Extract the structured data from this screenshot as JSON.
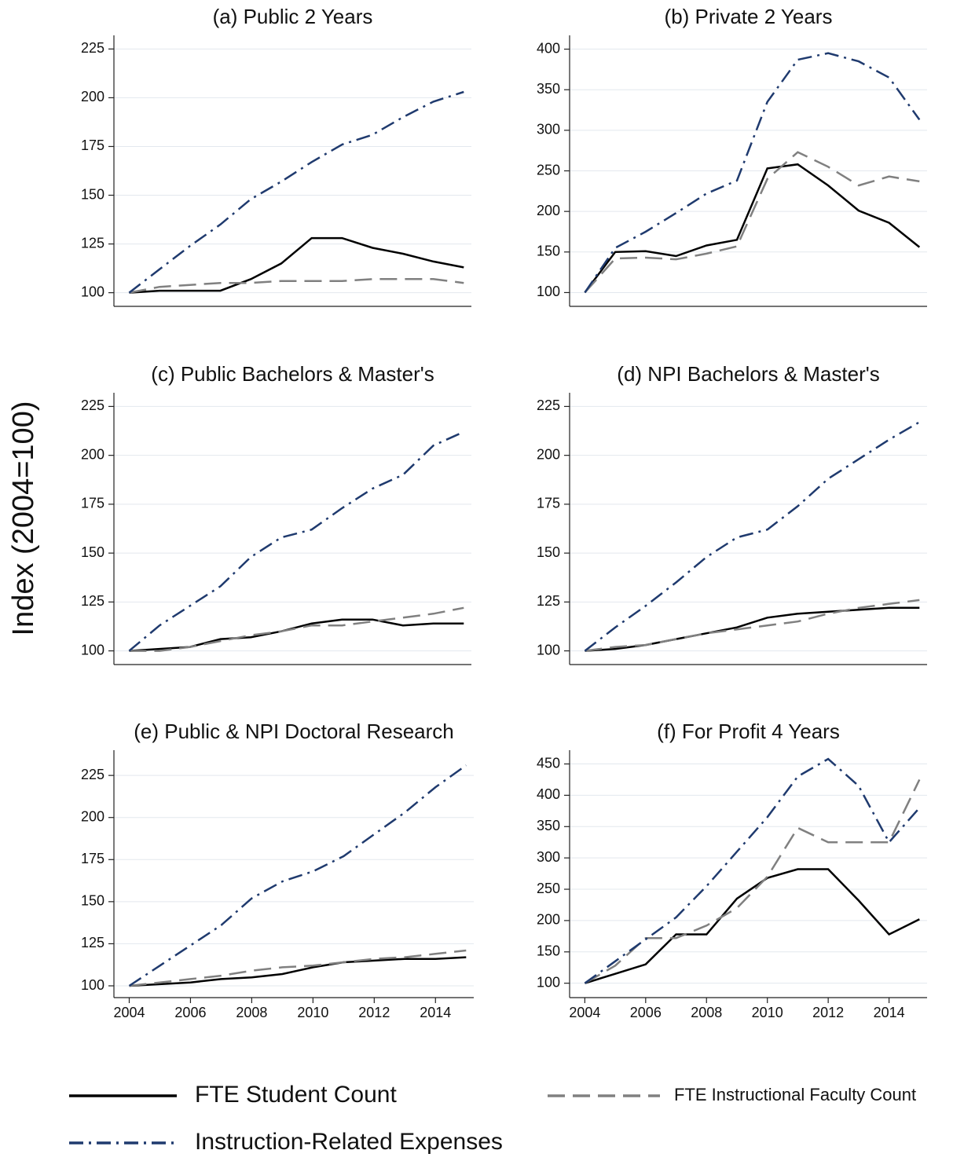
{
  "y_axis_label": "Index (2004=100)",
  "chart_data": [
    {
      "type": "line",
      "title": "(a) Public 2 Years",
      "x": [
        2004,
        2005,
        2006,
        2007,
        2008,
        2009,
        2010,
        2011,
        2012,
        2013,
        2014,
        2015
      ],
      "xlim": [
        2003.5,
        2015.25
      ],
      "ylim": [
        93,
        232
      ],
      "yticks": [
        100,
        125,
        150,
        175,
        200,
        225
      ],
      "grid": true,
      "series": [
        {
          "name": "FTE Student Count",
          "color": "#000000",
          "line_style": "solid",
          "values": [
            100,
            101,
            101,
            101,
            107,
            115,
            128,
            128,
            123,
            120,
            116,
            113
          ]
        },
        {
          "name": "FTE Instructional Faculty Count",
          "color": "#808080",
          "line_style": "dashed",
          "values": [
            100,
            103,
            104,
            105,
            105,
            106,
            106,
            106,
            107,
            107,
            107,
            105
          ]
        },
        {
          "name": "Instruction-Related Expenses",
          "color": "#1f3a6e",
          "line_style": "dashdot",
          "values": [
            100,
            112,
            124,
            135,
            148,
            157,
            167,
            176,
            181,
            190,
            198,
            203
          ]
        }
      ]
    },
    {
      "type": "line",
      "title": "(b) Private 2 Years",
      "x": [
        2004,
        2005,
        2006,
        2007,
        2008,
        2009,
        2010,
        2011,
        2012,
        2013,
        2014,
        2015
      ],
      "xlim": [
        2003.5,
        2015.25
      ],
      "ylim": [
        83,
        417
      ],
      "yticks": [
        100,
        150,
        200,
        250,
        300,
        350,
        400
      ],
      "grid": true,
      "series": [
        {
          "name": "FTE Student Count",
          "color": "#000000",
          "line_style": "solid",
          "values": [
            100,
            150,
            151,
            145,
            158,
            165,
            253,
            258,
            232,
            201,
            186,
            156
          ]
        },
        {
          "name": "FTE Instructional Faculty Count",
          "color": "#808080",
          "line_style": "dashed",
          "values": [
            100,
            142,
            143,
            141,
            148,
            157,
            240,
            273,
            255,
            232,
            243,
            237
          ]
        },
        {
          "name": "Instruction-Related Expenses",
          "color": "#1f3a6e",
          "line_style": "dashdot",
          "values": [
            100,
            155,
            175,
            198,
            222,
            238,
            335,
            387,
            395,
            385,
            365,
            313
          ]
        }
      ]
    },
    {
      "type": "line",
      "title": "(c) Public Bachelors & Master's",
      "x": [
        2004,
        2005,
        2006,
        2007,
        2008,
        2009,
        2010,
        2011,
        2012,
        2013,
        2014,
        2015
      ],
      "xlim": [
        2003.5,
        2015.25
      ],
      "ylim": [
        93,
        232
      ],
      "yticks": [
        100,
        125,
        150,
        175,
        200,
        225
      ],
      "grid": true,
      "series": [
        {
          "name": "FTE Student Count",
          "color": "#000000",
          "line_style": "solid",
          "values": [
            100,
            101,
            102,
            106,
            107,
            110,
            114,
            116,
            116,
            113,
            114,
            114
          ]
        },
        {
          "name": "FTE Instructional Faculty Count",
          "color": "#808080",
          "line_style": "dashed",
          "values": [
            100,
            100,
            102,
            105,
            108,
            110,
            113,
            113,
            115,
            117,
            119,
            122
          ]
        },
        {
          "name": "Instruction-Related Expenses",
          "color": "#1f3a6e",
          "line_style": "dashdot",
          "values": [
            100,
            113,
            123,
            133,
            148,
            158,
            162,
            173,
            183,
            190,
            205,
            212
          ]
        }
      ]
    },
    {
      "type": "line",
      "title": "(d) NPI Bachelors & Master's",
      "x": [
        2004,
        2005,
        2006,
        2007,
        2008,
        2009,
        2010,
        2011,
        2012,
        2013,
        2014,
        2015
      ],
      "xlim": [
        2003.5,
        2015.25
      ],
      "ylim": [
        93,
        232
      ],
      "yticks": [
        100,
        125,
        150,
        175,
        200,
        225
      ],
      "grid": true,
      "series": [
        {
          "name": "FTE Student Count",
          "color": "#000000",
          "line_style": "solid",
          "values": [
            100,
            101,
            103,
            106,
            109,
            112,
            117,
            119,
            120,
            121,
            122,
            122
          ]
        },
        {
          "name": "FTE Instructional Faculty Count",
          "color": "#808080",
          "line_style": "dashed",
          "values": [
            100,
            102,
            103,
            106,
            109,
            111,
            113,
            115,
            119,
            122,
            124,
            126
          ]
        },
        {
          "name": "Instruction-Related Expenses",
          "color": "#1f3a6e",
          "line_style": "dashdot",
          "values": [
            100,
            112,
            123,
            135,
            148,
            158,
            162,
            174,
            188,
            198,
            208,
            217
          ]
        }
      ]
    },
    {
      "type": "line",
      "title": "(e) Public & NPI Doctoral Research",
      "x": [
        2004,
        2005,
        2006,
        2007,
        2008,
        2009,
        2010,
        2011,
        2012,
        2013,
        2014,
        2015
      ],
      "xlim": [
        2003.5,
        2015.25
      ],
      "ylim": [
        93,
        240
      ],
      "yticks": [
        100,
        125,
        150,
        175,
        200,
        225
      ],
      "xticks": [
        2004,
        2006,
        2008,
        2010,
        2012,
        2014
      ],
      "grid": true,
      "series": [
        {
          "name": "FTE Student Count",
          "color": "#000000",
          "line_style": "solid",
          "values": [
            100,
            101,
            102,
            104,
            105,
            107,
            111,
            114,
            115,
            116,
            116,
            117
          ]
        },
        {
          "name": "FTE Instructional Faculty Count",
          "color": "#808080",
          "line_style": "dashed",
          "values": [
            100,
            102,
            104,
            106,
            109,
            111,
            112,
            114,
            116,
            117,
            119,
            121
          ]
        },
        {
          "name": "Instruction-Related Expenses",
          "color": "#1f3a6e",
          "line_style": "dashdot",
          "values": [
            100,
            112,
            124,
            136,
            152,
            162,
            168,
            177,
            190,
            203,
            218,
            231
          ]
        }
      ]
    },
    {
      "type": "line",
      "title": "(f) For Profit 4 Years",
      "x": [
        2004,
        2005,
        2006,
        2007,
        2008,
        2009,
        2010,
        2011,
        2012,
        2013,
        2014,
        2015
      ],
      "xlim": [
        2003.5,
        2015.25
      ],
      "ylim": [
        77,
        472
      ],
      "yticks": [
        100,
        150,
        200,
        250,
        300,
        350,
        400,
        450
      ],
      "xticks": [
        2004,
        2006,
        2008,
        2010,
        2012,
        2014
      ],
      "grid": true,
      "series": [
        {
          "name": "FTE Student Count",
          "color": "#000000",
          "line_style": "solid",
          "values": [
            100,
            115,
            130,
            178,
            178,
            235,
            268,
            282,
            282,
            232,
            178,
            202
          ]
        },
        {
          "name": "FTE Instructional Faculty Count",
          "color": "#808080",
          "line_style": "dashed",
          "values": [
            100,
            128,
            172,
            172,
            192,
            220,
            270,
            348,
            325,
            325,
            325,
            425
          ]
        },
        {
          "name": "Instruction-Related Expenses",
          "color": "#1f3a6e",
          "line_style": "dashdot",
          "values": [
            100,
            135,
            170,
            205,
            255,
            310,
            365,
            430,
            458,
            415,
            325,
            380
          ]
        }
      ]
    }
  ]
}
